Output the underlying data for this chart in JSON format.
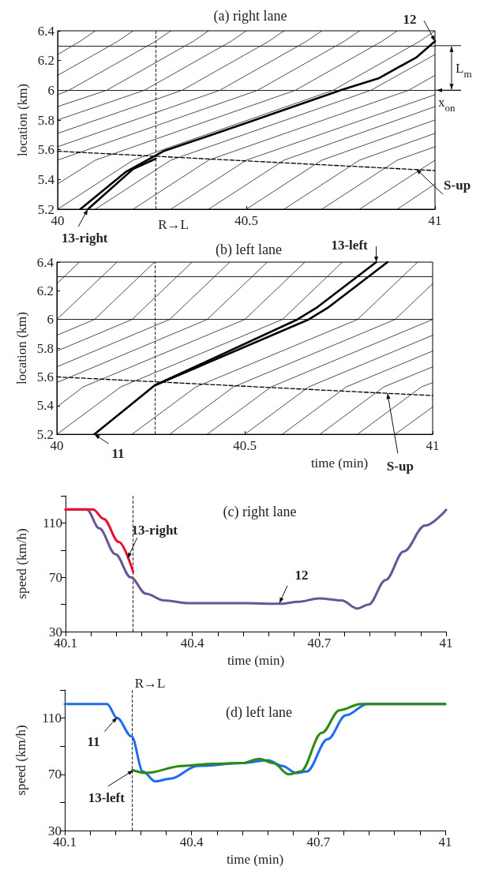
{
  "chart_data": [
    {
      "type": "line",
      "title": "(a) right lane",
      "ylabel": "location (km)",
      "xlim": [
        40,
        41
      ],
      "ylim": [
        5.2,
        6.4
      ],
      "xticks": [
        40,
        40.5,
        41
      ],
      "yticks": [
        5.2,
        5.4,
        5.6,
        5.8,
        6,
        6.2,
        6.4
      ],
      "grid": false,
      "ref_lines": [
        {
          "axis": "y",
          "value": 6.3
        },
        {
          "axis": "y",
          "value": 6,
          "label": "x$_{on}$"
        },
        {
          "axis": "x",
          "value": 40.26,
          "label": "R→L",
          "line_style": "dashed"
        }
      ],
      "annotations": [
        {
          "text": "12",
          "x": 41,
          "y": 6.33
        },
        {
          "text": "13-right",
          "x": 40.08,
          "y": 5.2
        },
        {
          "text": "S-up",
          "x": 40.95,
          "y": 5.47
        },
        "L$_{m}$"
      ],
      "series": [
        {
          "color": "#000000",
          "x": [
            40.06,
            40.18,
            40.28,
            40.5,
            40.75,
            40.85,
            40.95,
            41
          ],
          "values": [
            5.2,
            5.45,
            5.59,
            5.78,
            6.0,
            6.08,
            6.22,
            6.33
          ]
        },
        {
          "color": "#000000",
          "x": [
            40.08,
            40.2,
            40.26
          ],
          "values": [
            5.2,
            5.47,
            5.54
          ]
        },
        {
          "color": "#000000",
          "line_style": "dashed",
          "x": [
            40,
            41
          ],
          "values": [
            5.59,
            5.46
          ]
        },
        {
          "color": "#000000",
          "x": [
            40,
            40.06,
            40.1
          ],
          "values": [
            6.24,
            6.33,
            6.4
          ]
        },
        {
          "color": "#000000",
          "x": [
            40,
            40.16,
            40.2
          ],
          "values": [
            6.1,
            6.33,
            6.4
          ]
        },
        {
          "color": "#000000",
          "x": [
            40,
            40.03,
            40.26,
            40.3
          ],
          "values": [
            5.97,
            6,
            6.33,
            6.4
          ]
        },
        {
          "color": "#000000",
          "x": [
            40,
            40.13,
            40.36,
            40.4
          ],
          "values": [
            5.89,
            6,
            6.33,
            6.4
          ]
        },
        {
          "color": "#000000",
          "x": [
            40,
            40.23,
            40.46,
            40.5
          ],
          "values": [
            5.8,
            6,
            6.33,
            6.4
          ]
        },
        {
          "color": "#000000",
          "x": [
            40,
            40.33,
            40.56,
            40.6
          ],
          "values": [
            5.71,
            6,
            6.33,
            6.4
          ]
        },
        {
          "color": "#000000",
          "x": [
            40,
            40.43,
            40.66,
            40.7
          ],
          "values": [
            5.62,
            6,
            6.33,
            6.4
          ]
        },
        {
          "color": "#000000",
          "x": [
            40,
            40.53,
            40.76,
            40.8
          ],
          "values": [
            5.53,
            6,
            6.33,
            6.4
          ]
        },
        {
          "color": "#000000",
          "x": [
            40,
            40.1,
            40.63,
            40.86,
            40.9
          ],
          "values": [
            5.37,
            5.53,
            6,
            6.33,
            6.4
          ]
        },
        {
          "color": "#000000",
          "x": [
            40,
            40.2,
            40.73,
            40.96,
            41
          ],
          "values": [
            5.2,
            5.53,
            6,
            6.33,
            6.4
          ]
        },
        {
          "color": "#000000",
          "x": [
            40.1,
            40.3,
            40.83,
            41
          ],
          "values": [
            5.2,
            5.53,
            6,
            6.24
          ]
        },
        {
          "color": "#000000",
          "x": [
            40.2,
            40.4,
            40.93,
            41
          ],
          "values": [
            5.2,
            5.53,
            6,
            6.1
          ]
        },
        {
          "color": "#000000",
          "x": [
            40.3,
            40.5,
            41
          ],
          "values": [
            5.2,
            5.53,
            5.97
          ]
        },
        {
          "color": "#000000",
          "x": [
            40.4,
            40.6,
            41
          ],
          "values": [
            5.2,
            5.53,
            5.89
          ]
        },
        {
          "color": "#000000",
          "x": [
            40.5,
            40.7,
            41
          ],
          "values": [
            5.2,
            5.53,
            5.8
          ]
        },
        {
          "color": "#000000",
          "x": [
            40.6,
            40.8,
            41
          ],
          "values": [
            5.2,
            5.53,
            5.71
          ]
        },
        {
          "color": "#000000",
          "x": [
            40.7,
            40.9,
            41
          ],
          "values": [
            5.2,
            5.53,
            5.62
          ]
        },
        {
          "color": "#000000",
          "x": [
            40.8,
            41
          ],
          "values": [
            5.2,
            5.53
          ]
        },
        {
          "color": "#000000",
          "x": [
            40.9,
            41
          ],
          "values": [
            5.2,
            5.37
          ]
        }
      ]
    },
    {
      "type": "line",
      "title": "(b) left lane",
      "xlabel": "time (min)",
      "ylabel": "location (km)",
      "xlim": [
        40,
        41
      ],
      "ylim": [
        5.2,
        6.4
      ],
      "xticks": [
        40,
        40.5,
        41
      ],
      "yticks": [
        5.2,
        5.4,
        5.6,
        5.8,
        6,
        6.2,
        6.4
      ],
      "grid": false,
      "ref_lines": [
        {
          "axis": "y",
          "value": 6.3
        },
        {
          "axis": "y",
          "value": 6
        },
        {
          "axis": "x",
          "value": 40.26,
          "line_style": "dashed"
        }
      ],
      "annotations": [
        {
          "text": "13-left",
          "x": 40.85,
          "y": 6.4
        },
        {
          "text": "11",
          "x": 40.1,
          "y": 5.2
        },
        {
          "text": "S-up",
          "x": 40.88,
          "y": 5.485
        }
      ],
      "series": [
        {
          "color": "#000000",
          "x": [
            40.1,
            40.26,
            40.67,
            40.72,
            40.88
          ],
          "values": [
            5.2,
            5.54,
            6,
            6.08,
            6.4
          ]
        },
        {
          "color": "#000000",
          "x": [
            40.26,
            40.64,
            40.69,
            40.85
          ],
          "values": [
            5.54,
            6,
            6.08,
            6.4
          ]
        },
        {
          "color": "#000000",
          "line_style": "dashed",
          "x": [
            40,
            41
          ],
          "values": [
            5.6,
            5.47
          ]
        },
        {
          "color": "#000000",
          "x": [
            40,
            40.06
          ],
          "values": [
            6.25,
            6.4
          ]
        },
        {
          "color": "#000000",
          "x": [
            40,
            40.16
          ],
          "values": [
            6,
            6.4
          ]
        },
        {
          "color": "#000000",
          "x": [
            40,
            40.1,
            40.26
          ],
          "values": [
            5.89,
            6,
            6.4
          ]
        },
        {
          "color": "#000000",
          "x": [
            40,
            40.2,
            40.36
          ],
          "values": [
            5.78,
            6,
            6.4
          ]
        },
        {
          "color": "#000000",
          "x": [
            40,
            40.3,
            40.46
          ],
          "values": [
            5.67,
            6,
            6.4
          ]
        },
        {
          "color": "#000000",
          "x": [
            40,
            40.4,
            40.56
          ],
          "values": [
            5.56,
            6,
            6.4
          ]
        },
        {
          "color": "#000000",
          "x": [
            40,
            40.07,
            40.5,
            40.66
          ],
          "values": [
            5.39,
            5.53,
            6,
            6.4
          ]
        },
        {
          "color": "#000000",
          "x": [
            40,
            40.17,
            40.6,
            40.76
          ],
          "values": [
            5.2,
            5.53,
            6,
            6.4
          ]
        },
        {
          "color": "#000000",
          "x": [
            40.2,
            40.37,
            40.8,
            40.96
          ],
          "values": [
            5.2,
            5.53,
            6,
            6.4
          ]
        },
        {
          "color": "#000000",
          "x": [
            40.3,
            40.47,
            40.9,
            41
          ],
          "values": [
            5.2,
            5.53,
            6,
            6.25
          ]
        },
        {
          "color": "#000000",
          "x": [
            40.4,
            40.57,
            41
          ],
          "values": [
            5.2,
            5.53,
            6
          ]
        },
        {
          "color": "#000000",
          "x": [
            40.5,
            40.67,
            41
          ],
          "values": [
            5.2,
            5.53,
            5.89
          ]
        },
        {
          "color": "#000000",
          "x": [
            40.6,
            40.77,
            41
          ],
          "values": [
            5.2,
            5.53,
            5.78
          ]
        },
        {
          "color": "#000000",
          "x": [
            40.7,
            40.87,
            41
          ],
          "values": [
            5.2,
            5.53,
            5.67
          ]
        },
        {
          "color": "#000000",
          "x": [
            40.8,
            40.97,
            41
          ],
          "values": [
            5.2,
            5.53,
            5.56
          ]
        },
        {
          "color": "#000000",
          "x": [
            40.9,
            41
          ],
          "values": [
            5.2,
            5.39
          ]
        }
      ]
    },
    {
      "type": "line",
      "title": "(c) right lane",
      "xlabel": "time (min)",
      "ylabel": "speed (km/h)",
      "xlim": [
        40.1,
        41
      ],
      "ylim": [
        30,
        130
      ],
      "xticks": [
        40.1,
        {
          "value": 40.16,
          "label": null
        },
        {
          "value": 40.22,
          "label": null
        },
        {
          "value": 40.28,
          "label": null
        },
        {
          "value": 40.34,
          "label": null
        },
        40.4,
        {
          "value": 40.46,
          "label": null
        },
        {
          "value": 40.52,
          "label": null
        },
        {
          "value": 40.58,
          "label": null
        },
        {
          "value": 40.64,
          "label": null
        },
        40.7,
        {
          "value": 40.76,
          "label": null
        },
        {
          "value": 40.82,
          "label": null
        },
        {
          "value": 40.88,
          "label": null
        },
        {
          "value": 40.94,
          "label": null
        },
        41
      ],
      "yticks": [
        30,
        {
          "value": 50,
          "label": null
        },
        70,
        {
          "value": 90,
          "label": null
        },
        110,
        {
          "value": 130,
          "label": null
        }
      ],
      "grid": false,
      "ref_lines": [
        {
          "axis": "x",
          "value": 40.26,
          "line_style": "dashed"
        }
      ],
      "annotations": [
        {
          "text": "13-right",
          "x": 40.247,
          "y": 84
        },
        {
          "text": "12",
          "x": 40.606,
          "y": 51
        }
      ],
      "series": [
        {
          "color": "#6b5595",
          "x": [
            40.1,
            40.15,
            40.18,
            40.218,
            40.254,
            40.29,
            40.333,
            40.39,
            40.52,
            40.61,
            40.65,
            40.7,
            40.753,
            40.79,
            40.817,
            40.857,
            40.9,
            40.95,
            41
          ],
          "values": [
            120,
            120,
            106,
            87,
            70,
            58,
            53,
            51,
            51,
            50.5,
            52,
            54.5,
            53,
            47,
            50,
            68,
            89,
            108,
            119.6
          ]
        },
        {
          "color": "#e8112d",
          "x": [
            40.1,
            40.165,
            40.19,
            40.226,
            40.26
          ],
          "values": [
            120,
            120,
            113,
            96,
            74
          ]
        }
      ]
    },
    {
      "type": "line",
      "title": "(d) left lane",
      "xlabel": "time (min)",
      "ylabel": "speed (km/h)",
      "xlim": [
        40.1,
        41
      ],
      "ylim": [
        30,
        130
      ],
      "xticks": [
        40.1,
        {
          "value": 40.16,
          "label": null
        },
        {
          "value": 40.22,
          "label": null
        },
        {
          "value": 40.28,
          "label": null
        },
        {
          "value": 40.34,
          "label": null
        },
        40.4,
        {
          "value": 40.46,
          "label": null
        },
        {
          "value": 40.52,
          "label": null
        },
        {
          "value": 40.58,
          "label": null
        },
        {
          "value": 40.64,
          "label": null
        },
        40.7,
        {
          "value": 40.76,
          "label": null
        },
        {
          "value": 40.82,
          "label": null
        },
        {
          "value": 40.88,
          "label": null
        },
        {
          "value": 40.94,
          "label": null
        },
        41
      ],
      "yticks": [
        30,
        {
          "value": 50,
          "label": null
        },
        70,
        {
          "value": 90,
          "label": null
        },
        110,
        {
          "value": 130,
          "label": null
        }
      ],
      "grid": false,
      "ref_lines": [
        {
          "axis": "x",
          "value": 40.26,
          "label": "R→L",
          "line_style": "dashed"
        }
      ],
      "annotations": [
        {
          "text": "11",
          "x": 40.224,
          "y": 110.6
        },
        {
          "text": "13-left",
          "x": 40.262,
          "y": 72.8
        }
      ],
      "series": [
        {
          "color": "#1f6cf2",
          "x": [
            40.1,
            40.2,
            40.224,
            40.258,
            40.285,
            40.314,
            40.35,
            40.414,
            40.52,
            40.58,
            40.615,
            40.647,
            40.672,
            40.722,
            40.765,
            40.816,
            41
          ],
          "values": [
            120,
            120,
            110,
            97,
            72,
            65,
            67,
            76,
            78,
            80,
            76,
            71,
            72,
            95,
            112,
            120,
            120
          ]
        },
        {
          "color": "#2e8b12",
          "x": [
            40.26,
            40.292,
            40.378,
            40.45,
            40.52,
            40.56,
            40.593,
            40.63,
            40.658,
            40.708,
            40.75,
            40.8,
            41
          ],
          "values": [
            73,
            71,
            76,
            77.5,
            78,
            81,
            78,
            70,
            72,
            99.5,
            115.6,
            120,
            120
          ]
        }
      ]
    }
  ]
}
